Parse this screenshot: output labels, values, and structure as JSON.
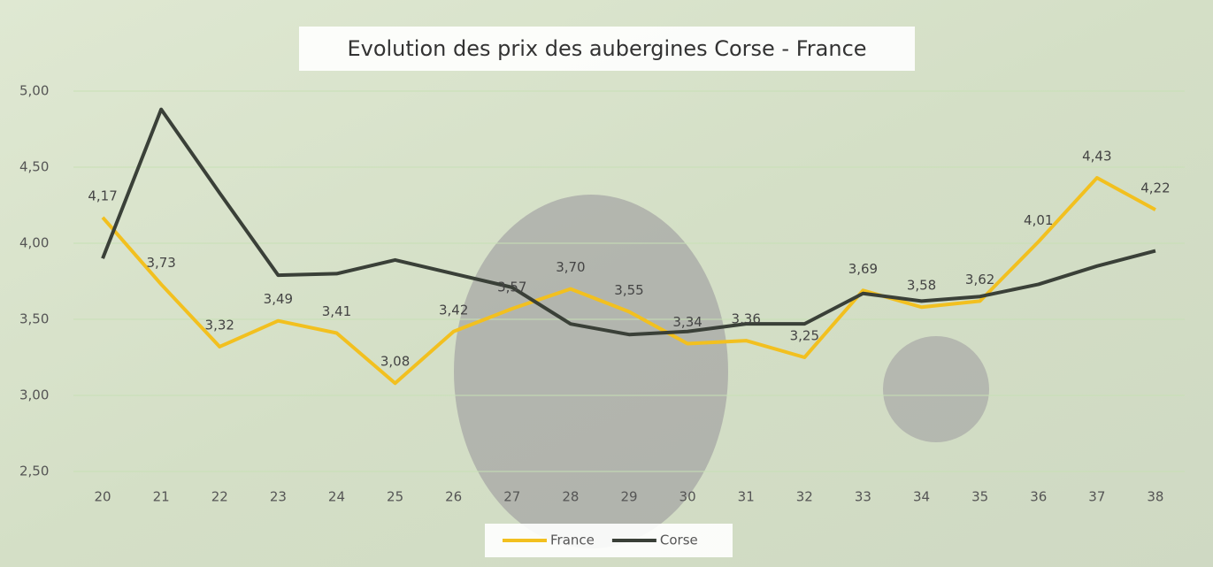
{
  "chart_data": {
    "type": "line",
    "title": "Evolution des prix des aubergines Corse - France",
    "categories": [
      "20",
      "21",
      "22",
      "23",
      "24",
      "25",
      "26",
      "27",
      "28",
      "29",
      "30",
      "31",
      "32",
      "33",
      "34",
      "35",
      "36",
      "37",
      "38"
    ],
    "series": [
      {
        "name": "France",
        "color": "#f2c01f",
        "values": [
          4.17,
          3.73,
          3.32,
          3.49,
          3.41,
          3.08,
          3.42,
          3.57,
          3.7,
          3.55,
          3.34,
          3.36,
          3.25,
          3.69,
          3.58,
          3.62,
          4.01,
          4.43,
          4.22
        ],
        "value_labels": [
          "4,17",
          "3,73",
          "3,32",
          "3,49",
          "3,41",
          "3,08",
          "3,42",
          "3,57",
          "3,70",
          "3,55",
          "3,34",
          "3,36",
          "3,25",
          "3,69",
          "3,58",
          "3,62",
          "4,01",
          "4,43",
          "4,22"
        ]
      },
      {
        "name": "Corse",
        "color": "#3a4038",
        "values": [
          3.9,
          4.88,
          4.33,
          3.79,
          3.8,
          3.89,
          3.8,
          3.71,
          3.47,
          3.4,
          3.42,
          3.47,
          3.47,
          3.67,
          3.62,
          3.65,
          3.73,
          3.85,
          3.95
        ]
      }
    ],
    "ylim": [
      2.5,
      5.0
    ],
    "yticks": [
      {
        "value": 2.5,
        "label": "2,50"
      },
      {
        "value": 3.0,
        "label": "3,00"
      },
      {
        "value": 3.5,
        "label": "3,50"
      },
      {
        "value": 4.0,
        "label": "4,00"
      },
      {
        "value": 4.5,
        "label": "4,50"
      },
      {
        "value": 5.0,
        "label": "5,00"
      }
    ],
    "grid": true,
    "legend": "bottom"
  }
}
